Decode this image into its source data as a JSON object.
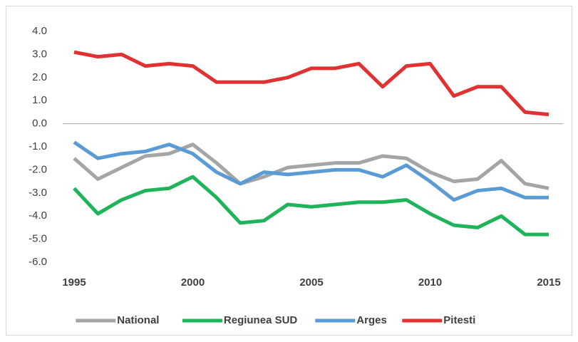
{
  "chart_data": {
    "type": "line",
    "x": [
      1995,
      1996,
      1997,
      1998,
      1999,
      2000,
      2001,
      2002,
      2003,
      2004,
      2005,
      2006,
      2007,
      2008,
      2009,
      2010,
      2011,
      2012,
      2013,
      2014,
      2015
    ],
    "xlim": [
      1995,
      2015
    ],
    "xticks": [
      1995,
      2000,
      2005,
      2010,
      2015
    ],
    "ylim": [
      -6,
      4
    ],
    "yticks": [
      {
        "value": 4,
        "label": "4.0"
      },
      {
        "value": 3,
        "label": "3.0"
      },
      {
        "value": 2,
        "label": "2.0"
      },
      {
        "value": 1,
        "label": "1.0"
      },
      {
        "value": 0,
        "label": "0.0"
      },
      {
        "value": -1,
        "label": "-1.0"
      },
      {
        "value": -2,
        "label": "-2.0"
      },
      {
        "value": -3,
        "label": "-3.0"
      },
      {
        "value": -4,
        "label": "-4.0"
      },
      {
        "value": -5,
        "label": "-5.0"
      },
      {
        "value": -6,
        "label": "-6.0"
      }
    ],
    "legend": "bottom",
    "series": [
      {
        "name": "National",
        "color": "#a5a5a5",
        "values": [
          -1.5,
          -2.4,
          -1.9,
          -1.4,
          -1.3,
          -0.9,
          -1.7,
          -2.6,
          -2.3,
          -1.9,
          -1.8,
          -1.7,
          -1.7,
          -1.4,
          -1.5,
          -2.1,
          -2.5,
          -2.4,
          -1.6,
          -2.6,
          -2.8
        ]
      },
      {
        "name": "Regiunea SUD",
        "color": "#1fb35a",
        "values": [
          -2.8,
          -3.9,
          -3.3,
          -2.9,
          -2.8,
          -2.3,
          -3.2,
          -4.3,
          -4.2,
          -3.5,
          -3.6,
          -3.5,
          -3.4,
          -3.4,
          -3.3,
          -3.9,
          -4.4,
          -4.5,
          -4.0,
          -4.8,
          -4.8
        ]
      },
      {
        "name": "Arges",
        "color": "#5b9bd5",
        "values": [
          -0.8,
          -1.5,
          -1.3,
          -1.2,
          -0.9,
          -1.3,
          -2.1,
          -2.6,
          -2.1,
          -2.2,
          -2.1,
          -2.0,
          -2.0,
          -2.3,
          -1.8,
          -2.5,
          -3.3,
          -2.9,
          -2.8,
          -3.2,
          -3.2
        ]
      },
      {
        "name": "Pitesti",
        "color": "#e03232",
        "values": [
          3.1,
          2.9,
          3.0,
          2.5,
          2.6,
          2.5,
          1.8,
          1.8,
          1.8,
          2.0,
          2.4,
          2.4,
          2.6,
          1.6,
          2.5,
          2.6,
          1.2,
          1.6,
          1.6,
          0.5,
          0.4
        ]
      }
    ]
  }
}
